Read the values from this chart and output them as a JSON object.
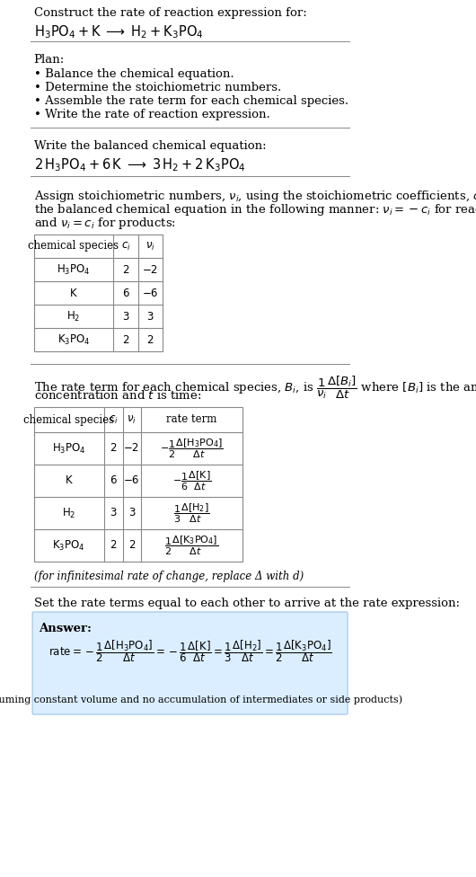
{
  "bg_color": "#ffffff",
  "text_color": "#000000",
  "answer_box_color": "#dbeeff",
  "answer_box_border": "#aaccee",
  "title_line1": "Construct the rate of reaction expression for:",
  "title_line2_mathtext": "$\\mathrm{H_3PO_4 + K \\;\\longrightarrow\\; H_2 + K_3PO_4}$",
  "plan_header": "Plan:",
  "plan_bullets": [
    "• Balance the chemical equation.",
    "• Determine the stoichiometric numbers.",
    "• Assemble the rate term for each chemical species.",
    "• Write the rate of reaction expression."
  ],
  "balanced_header": "Write the balanced chemical equation:",
  "balanced_eq": "$\\mathrm{2\\,H_3PO_4 + 6\\,K \\;\\longrightarrow\\; 3\\,H_2 + 2\\,K_3PO_4}$",
  "stoich_intro": "Assign stoichiometric numbers, $\\nu_i$, using the stoichiometric coefficients, $c_i$, from\nthe balanced chemical equation in the following manner: $\\nu_i = -c_i$ for reactants\nand $\\nu_i = c_i$ for products:",
  "table1_headers": [
    "chemical species",
    "$c_i$",
    "$\\nu_i$"
  ],
  "table1_rows": [
    [
      "$\\mathrm{H_3PO_4}$",
      "2",
      "−2"
    ],
    [
      "$\\mathrm{K}$",
      "6",
      "−6"
    ],
    [
      "$\\mathrm{H_2}$",
      "3",
      "3"
    ],
    [
      "$\\mathrm{K_3PO_4}$",
      "2",
      "2"
    ]
  ],
  "rate_intro": "The rate term for each chemical species, $B_i$, is $\\dfrac{1}{\\nu_i}\\dfrac{\\Delta[B_i]}{\\Delta t}$ where $[B_i]$ is the amount\nconcentration and $t$ is time:",
  "table2_headers": [
    "chemical species",
    "$c_i$",
    "$\\nu_i$",
    "rate term"
  ],
  "table2_rows": [
    [
      "$\\mathrm{H_3PO_4}$",
      "2",
      "−2",
      "$-\\dfrac{1}{2}\\dfrac{\\Delta[\\mathrm{H_3PO_4}]}{\\Delta t}$"
    ],
    [
      "$\\mathrm{K}$",
      "6",
      "−6",
      "$-\\dfrac{1}{6}\\dfrac{\\Delta[\\mathrm{K}]}{\\Delta t}$"
    ],
    [
      "$\\mathrm{H_2}$",
      "3",
      "3",
      "$\\dfrac{1}{3}\\dfrac{\\Delta[\\mathrm{H_2}]}{\\Delta t}$"
    ],
    [
      "$\\mathrm{K_3PO_4}$",
      "2",
      "2",
      "$\\dfrac{1}{2}\\dfrac{\\Delta[\\mathrm{K_3PO_4}]}{\\Delta t}$"
    ]
  ],
  "infinitesimal_note": "(for infinitesimal rate of change, replace Δ with d)",
  "set_equal_text": "Set the rate terms equal to each other to arrive at the rate expression:",
  "answer_label": "Answer:",
  "answer_footnote": "(assuming constant volume and no accumulation of intermediates or side products)"
}
